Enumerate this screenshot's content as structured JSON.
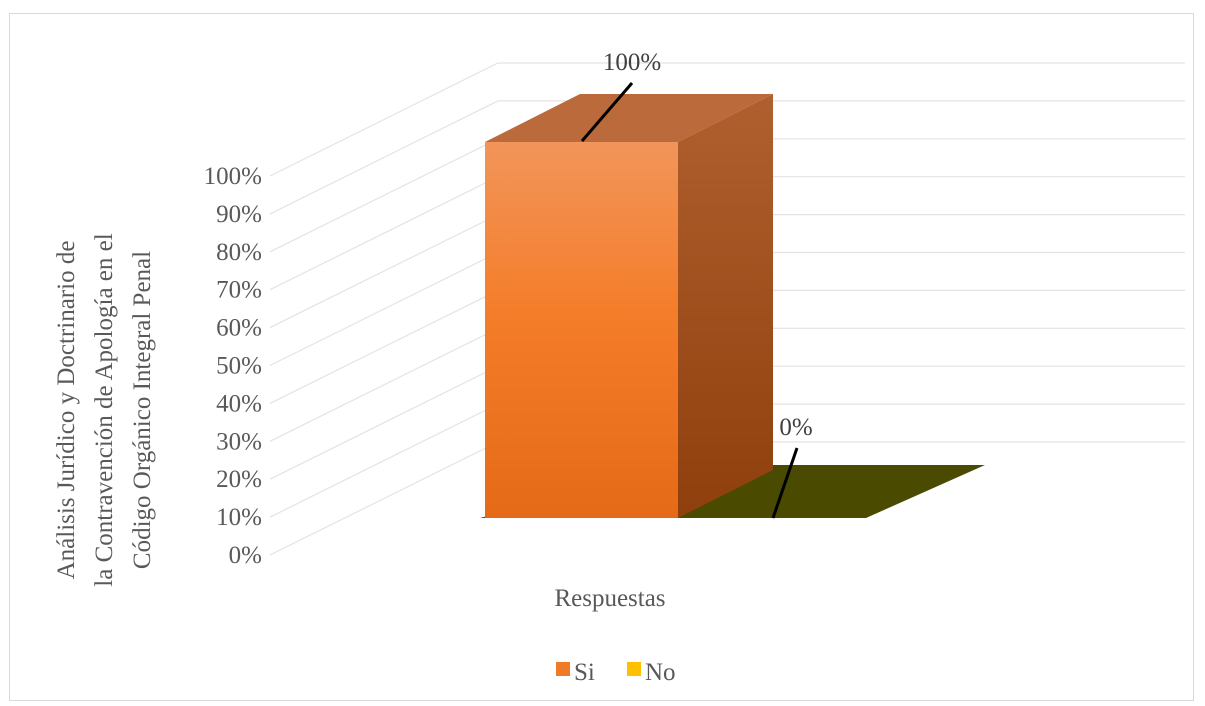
{
  "chart_data": {
    "type": "bar",
    "three_d": true,
    "title": "",
    "categories": [
      "Respuestas"
    ],
    "series": [
      {
        "name": "Si",
        "values": [
          1.0
        ],
        "color": "#f07a28"
      },
      {
        "name": "No",
        "values": [
          0.0
        ],
        "color": "#ffc000"
      }
    ],
    "data_labels": [
      "100%",
      "0%"
    ],
    "xlabel": "Respuestas",
    "ylabel_lines": [
      "Análisis Jurídico y Doctrinario de",
      "la Contravención de Apología en el",
      "Código Orgánico Integral Penal"
    ],
    "ylim": [
      0,
      1
    ],
    "y_ticks": [
      "0%",
      "10%",
      "20%",
      "30%",
      "40%",
      "50%",
      "60%",
      "70%",
      "80%",
      "90%",
      "100%"
    ],
    "grid": true,
    "legend_position": "bottom",
    "floor_color": "#4a4a00"
  }
}
